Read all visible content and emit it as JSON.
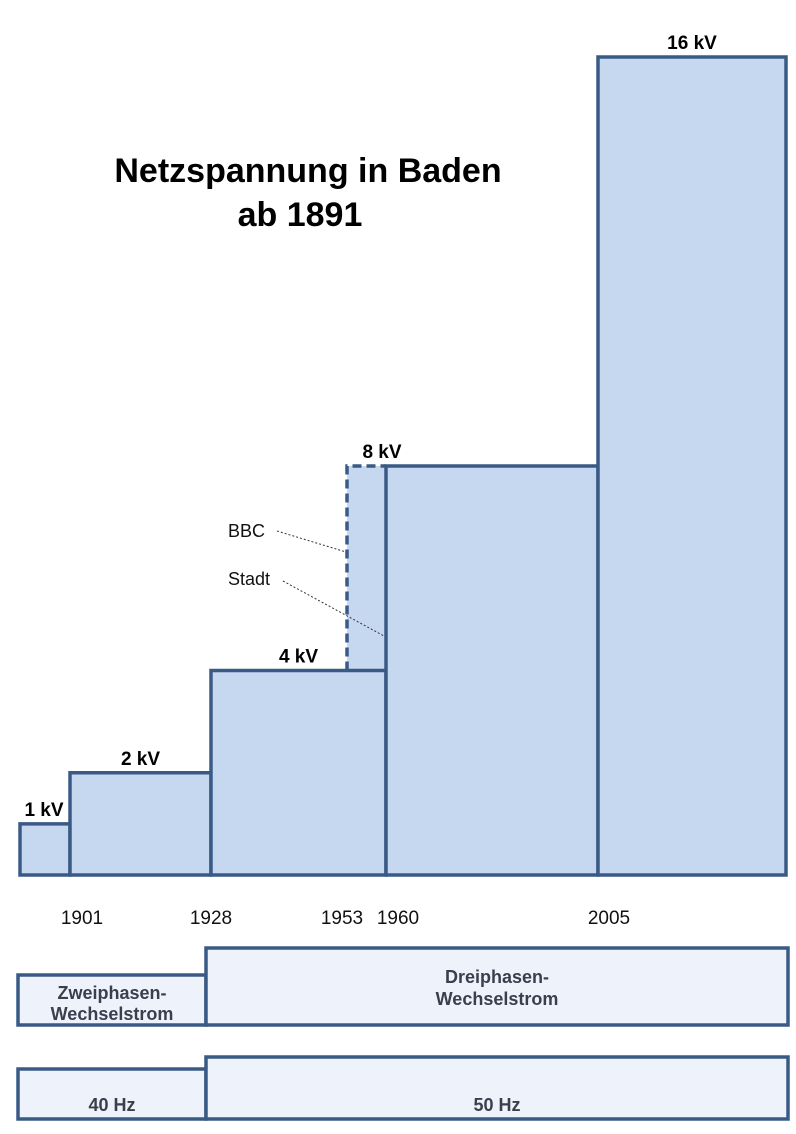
{
  "chart_data": {
    "type": "bar",
    "title_line1": "Netzspannung in Baden",
    "title_line2": "ab 1891",
    "unit": "kV",
    "start_year": 1891,
    "steps": [
      {
        "label": "1 kV",
        "value": 1,
        "from": 1891,
        "to": 1901
      },
      {
        "label": "2 kV",
        "value": 2,
        "from": 1901,
        "to": 1928
      },
      {
        "label": "4 kV",
        "value": 4,
        "from": 1928,
        "to": 1960
      },
      {
        "label": "8 kV",
        "value": 8,
        "from": 1960,
        "to": 2005
      },
      {
        "label": "16 kV",
        "value": 16,
        "from": 2005,
        "to": 2041
      }
    ],
    "bbc_step": {
      "value": 8,
      "from": 1953,
      "to": 1960,
      "style": "dashed"
    },
    "year_ticks": [
      "1901",
      "1928",
      "1953",
      "1960",
      "2005"
    ],
    "annotations": [
      {
        "text": "BBC",
        "points_to": "bbc-dashed-edge"
      },
      {
        "text": "Stadt",
        "points_to": "city-step-edge"
      }
    ],
    "phase_bands": [
      {
        "line1": "Zweiphasen-",
        "line2": "Wechselstrom",
        "from": 1891,
        "to": 1928
      },
      {
        "line1": "Dreiphasen-",
        "line2": "Wechselstrom",
        "from": 1928,
        "to": 2041
      }
    ],
    "frequency_bands": [
      {
        "label": "40 Hz",
        "from": 1891,
        "to": 1928
      },
      {
        "label": "50 Hz",
        "from": 1928,
        "to": 2041
      }
    ],
    "colors": {
      "fill": "#c6d8f0",
      "stroke": "#3a5a86",
      "band_fill": "#eef3fb"
    }
  }
}
